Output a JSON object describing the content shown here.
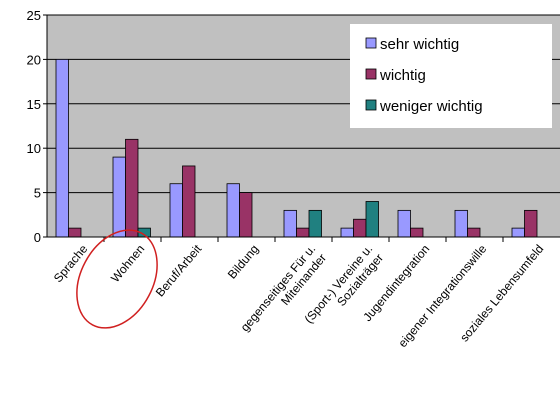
{
  "chart_data": {
    "type": "bar",
    "title": "",
    "xlabel": "",
    "ylabel": "",
    "ylim": [
      0,
      25
    ],
    "yticks": [
      0,
      5,
      10,
      15,
      20,
      25
    ],
    "grid": true,
    "legend_position": "top-right",
    "categories": [
      "Sprache",
      "Wohnen",
      "Beruf/Arbeit",
      "Bildung",
      "gegenseitiges Für u. Miteinander",
      "(Sport-) Vereine u. Sozialträger",
      "Jugendintegration",
      "eigener Integrationswille",
      "soziales Lebensumfeld"
    ],
    "series": [
      {
        "name": "sehr wichtig",
        "color": "#9999ff",
        "values": [
          20,
          9,
          6,
          6,
          3,
          1,
          3,
          3,
          1
        ]
      },
      {
        "name": "wichtig",
        "color": "#993366",
        "values": [
          1,
          11,
          8,
          5,
          1,
          2,
          1,
          1,
          3
        ]
      },
      {
        "name": "weniger wichtig",
        "color": "#208080",
        "values": [
          0,
          1,
          0,
          0,
          3,
          4,
          0,
          0,
          0
        ]
      }
    ],
    "annotations": [
      {
        "type": "ellipse",
        "target": "Wohnen",
        "color": "#d02020"
      }
    ],
    "plot_background": "#c0c0c0"
  }
}
